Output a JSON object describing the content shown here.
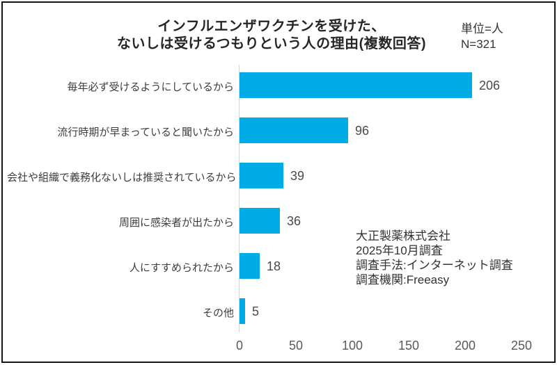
{
  "title": {
    "line1": "インフルエンザワクチンを受けた、",
    "line2": "ないしは受けるつもりという人の理由(複数回答)"
  },
  "unit_note": {
    "line1": "単位=人",
    "line2": "N=321"
  },
  "source": {
    "lines": [
      "大正製薬株式会社",
      "2025年10月調査",
      "調査手法:インターネット調査",
      "調査機関:Freeasy"
    ]
  },
  "chart_data": {
    "type": "bar",
    "orientation": "horizontal",
    "title": "インフルエンザワクチンを受けた、ないしは受けるつもりという人の理由(複数回答)",
    "categories": [
      "毎年必ず受けるようにしているから",
      "流行時期が早まっていると聞いたから",
      "会社や組織で義務化ないしは推奨されているから",
      "周囲に感染者が出たから",
      "人にすすめられたから",
      "その他"
    ],
    "values": [
      206,
      96,
      39,
      36,
      18,
      5
    ],
    "xlabel": "",
    "ylabel": "",
    "xlim": [
      0,
      250
    ],
    "xticks": [
      0,
      50,
      100,
      150,
      200,
      250
    ],
    "grid": false,
    "legend": false,
    "data_labels": true,
    "unit": "人",
    "n": 321
  },
  "colors": {
    "bar": "#00ACE6",
    "title_text": "#262626",
    "label_text": "#3d3d3d",
    "value_text": "#4a4a4a",
    "tick_text": "#595959",
    "axis_line": "#d6d6d6",
    "frame_border": "#141414"
  }
}
